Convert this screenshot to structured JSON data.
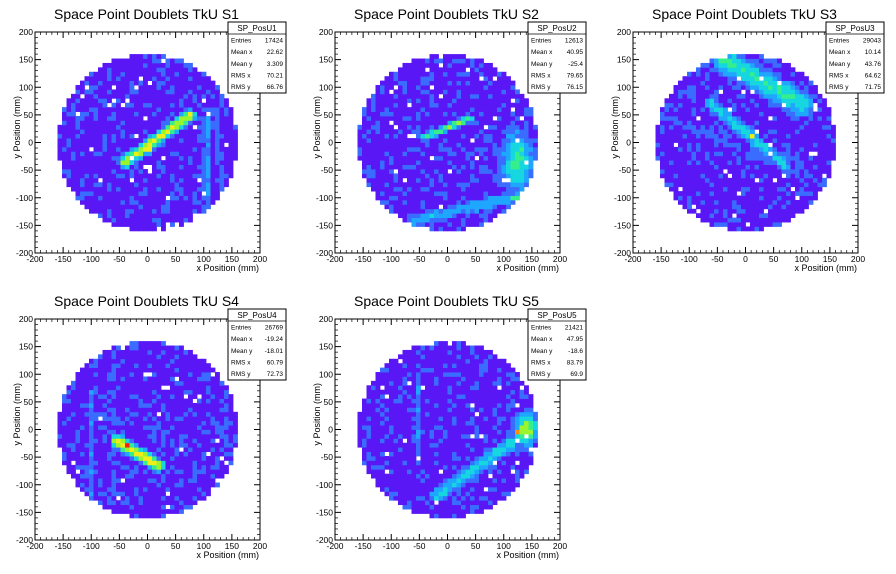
{
  "colors": {
    "frame": "#000000",
    "bg_fill": "#5a17f5",
    "palette": [
      "#3d12cf",
      "#5a17f5",
      "#3a6cff",
      "#1fa7ff",
      "#16d7e0",
      "#35ee8c",
      "#9bf52c",
      "#f0ee18",
      "#ff8a10",
      "#ff1d0f"
    ]
  },
  "chart_data": [
    {
      "type": "heatmap",
      "title": "Space Point Doublets TkU S1",
      "xlabel": "x Position (mm)",
      "ylabel": "y Position (mm)",
      "xlim": [
        -200,
        200
      ],
      "ylim": [
        -200,
        200
      ],
      "xticks": [
        -200,
        -150,
        -100,
        -50,
        0,
        50,
        100,
        150,
        200
      ],
      "yticks": [
        -200,
        -150,
        -100,
        -50,
        0,
        50,
        100,
        150,
        200
      ],
      "detector_radius": 160,
      "bin_size": 8,
      "stats": {
        "name": "SP_PosU1",
        "rows": [
          {
            "label": "Entries",
            "value": "17424"
          },
          {
            "label": "Mean x",
            "value": "22.62"
          },
          {
            "label": "Mean y",
            "value": "3.309"
          },
          {
            "label": "RMS x",
            "value": "70.21"
          },
          {
            "label": "RMS y",
            "value": "66.76"
          }
        ]
      },
      "features": [
        {
          "kind": "line",
          "from": [
            -40,
            -35
          ],
          "to": [
            75,
            50
          ],
          "width": 16,
          "level": 0.75
        },
        {
          "kind": "spot",
          "at": [
            0,
            -10
          ],
          "r": 14,
          "level": 1.0
        },
        {
          "kind": "line",
          "from": [
            105,
            60
          ],
          "to": [
            105,
            -110
          ],
          "width": 10,
          "level": 0.35
        },
        {
          "kind": "line",
          "from": [
            120,
            60
          ],
          "to": [
            135,
            -100
          ],
          "width": 10,
          "level": 0.25
        }
      ]
    },
    {
      "type": "heatmap",
      "title": "Space Point Doublets TkU S2",
      "xlabel": "x Position (mm)",
      "ylabel": "y Position (mm)",
      "xlim": [
        -200,
        200
      ],
      "ylim": [
        -200,
        200
      ],
      "xticks": [
        -200,
        -150,
        -100,
        -50,
        0,
        50,
        100,
        150,
        200
      ],
      "yticks": [
        -200,
        -150,
        -100,
        -50,
        0,
        50,
        100,
        150,
        200
      ],
      "detector_radius": 160,
      "bin_size": 8,
      "stats": {
        "name": "SP_PosU2",
        "rows": [
          {
            "label": "Entries",
            "value": "12613"
          },
          {
            "label": "Mean x",
            "value": "40.95"
          },
          {
            "label": "Mean y",
            "value": "-25.4"
          },
          {
            "label": "RMS x",
            "value": "79.65"
          },
          {
            "label": "RMS y",
            "value": "76.15"
          }
        ]
      },
      "features": [
        {
          "kind": "line",
          "from": [
            -40,
            10
          ],
          "to": [
            40,
            45
          ],
          "width": 10,
          "level": 0.6
        },
        {
          "kind": "blob",
          "at": [
            125,
            -35
          ],
          "rx": 40,
          "ry": 75,
          "level": 0.55
        },
        {
          "kind": "spot",
          "at": [
            120,
            -100
          ],
          "r": 8,
          "level": 1.0
        },
        {
          "kind": "line",
          "from": [
            -60,
            -140
          ],
          "to": [
            160,
            -90
          ],
          "width": 20,
          "level": 0.35
        }
      ]
    },
    {
      "type": "heatmap",
      "title": "Space Point Doublets TkU S3",
      "xlabel": "x Position (mm)",
      "ylabel": "y Position (mm)",
      "xlim": [
        -200,
        200
      ],
      "ylim": [
        -200,
        200
      ],
      "xticks": [
        -200,
        -150,
        -100,
        -50,
        0,
        50,
        100,
        150,
        200
      ],
      "yticks": [
        -200,
        -150,
        -100,
        -50,
        0,
        50,
        100,
        150,
        200
      ],
      "detector_radius": 160,
      "bin_size": 8,
      "stats": {
        "name": "SP_PosU3",
        "rows": [
          {
            "label": "Entries",
            "value": "29043"
          },
          {
            "label": "Mean x",
            "value": "10.14"
          },
          {
            "label": "Mean y",
            "value": "43.76"
          },
          {
            "label": "RMS x",
            "value": "64.62"
          },
          {
            "label": "RMS y",
            "value": "71.75"
          }
        ]
      },
      "features": [
        {
          "kind": "line",
          "from": [
            -40,
            150
          ],
          "to": [
            100,
            70
          ],
          "width": 34,
          "level": 0.5
        },
        {
          "kind": "line",
          "from": [
            -60,
            70
          ],
          "to": [
            70,
            -40
          ],
          "width": 18,
          "level": 0.45
        },
        {
          "kind": "spot",
          "at": [
            10,
            10
          ],
          "r": 8,
          "level": 0.9
        },
        {
          "kind": "line",
          "from": [
            -150,
            50
          ],
          "to": [
            150,
            -80
          ],
          "width": 14,
          "level": 0.22
        }
      ]
    },
    {
      "type": "heatmap",
      "title": "Space Point Doublets TkU S4",
      "xlabel": "x Position (mm)",
      "ylabel": "y Position (mm)",
      "xlim": [
        -200,
        200
      ],
      "ylim": [
        -200,
        200
      ],
      "xticks": [
        -200,
        -150,
        -100,
        -50,
        0,
        50,
        100,
        150,
        200
      ],
      "yticks": [
        -200,
        -150,
        -100,
        -50,
        0,
        50,
        100,
        150,
        200
      ],
      "detector_radius": 160,
      "bin_size": 8,
      "stats": {
        "name": "SP_PosU4",
        "rows": [
          {
            "label": "Entries",
            "value": "26769"
          },
          {
            "label": "Mean x",
            "value": "-19.24"
          },
          {
            "label": "Mean y",
            "value": "-18.01"
          },
          {
            "label": "RMS x",
            "value": "60.79"
          },
          {
            "label": "RMS y",
            "value": "72.73"
          }
        ]
      },
      "features": [
        {
          "kind": "line",
          "from": [
            -55,
            -20
          ],
          "to": [
            20,
            -65
          ],
          "width": 16,
          "level": 0.8
        },
        {
          "kind": "spot",
          "at": [
            -35,
            -30
          ],
          "r": 12,
          "level": 1.0
        },
        {
          "kind": "line",
          "from": [
            -100,
            70
          ],
          "to": [
            -100,
            -150
          ],
          "width": 8,
          "level": 0.25
        },
        {
          "kind": "line",
          "from": [
            -60,
            140
          ],
          "to": [
            -60,
            -150
          ],
          "width": 6,
          "level": 0.18
        }
      ]
    },
    {
      "type": "heatmap",
      "title": "Space Point Doublets TkU S5",
      "xlabel": "x Position (mm)",
      "ylabel": "y Position (mm)",
      "xlim": [
        -200,
        200
      ],
      "ylim": [
        -200,
        200
      ],
      "xticks": [
        -200,
        -150,
        -100,
        -50,
        0,
        50,
        100,
        150,
        200
      ],
      "yticks": [
        -200,
        -150,
        -100,
        -50,
        0,
        50,
        100,
        150,
        200
      ],
      "detector_radius": 160,
      "bin_size": 8,
      "stats": {
        "name": "SP_PosU5",
        "rows": [
          {
            "label": "Entries",
            "value": "21421"
          },
          {
            "label": "Mean x",
            "value": "47.95"
          },
          {
            "label": "Mean y",
            "value": "-18.6"
          },
          {
            "label": "RMS x",
            "value": "83.79"
          },
          {
            "label": "RMS y",
            "value": "69.9"
          }
        ]
      },
      "features": [
        {
          "kind": "line",
          "from": [
            -20,
            -120
          ],
          "to": [
            160,
            10
          ],
          "width": 20,
          "level": 0.45
        },
        {
          "kind": "blob",
          "at": [
            140,
            0
          ],
          "rx": 25,
          "ry": 40,
          "level": 0.7
        },
        {
          "kind": "spot",
          "at": [
            125,
            -5
          ],
          "r": 8,
          "level": 1.0
        },
        {
          "kind": "line",
          "from": [
            -50,
            100
          ],
          "to": [
            -50,
            -60
          ],
          "width": 6,
          "level": 0.3
        }
      ]
    }
  ]
}
